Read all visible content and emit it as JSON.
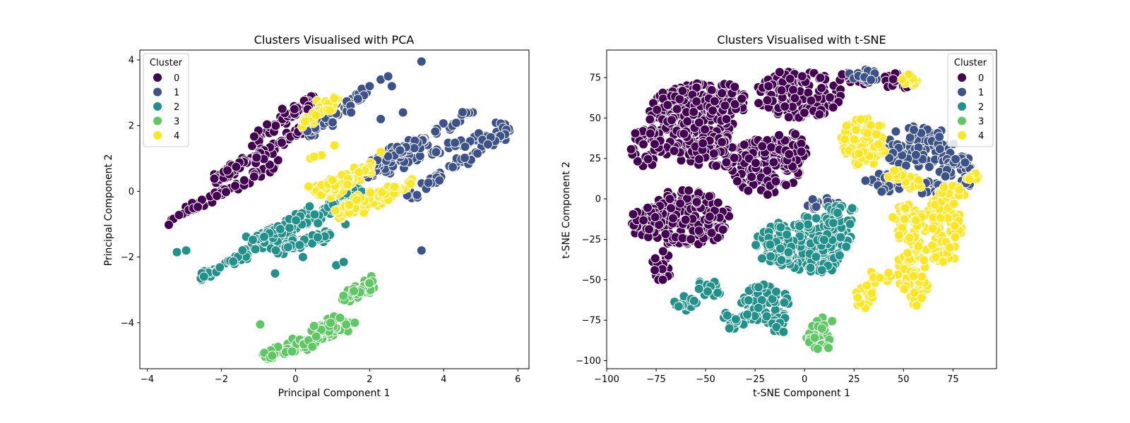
{
  "chart_data": [
    {
      "type": "scatter",
      "title": "Clusters Visualised with PCA",
      "xlabel": "Principal Component 1",
      "ylabel": "Principal Component 2",
      "xlim": [
        -4.2,
        6.3
      ],
      "ylim": [
        -5.4,
        4.3
      ],
      "xticks": [
        -4,
        -2,
        0,
        2,
        4,
        6
      ],
      "yticks": [
        -4,
        -2,
        0,
        2,
        4
      ],
      "grid": false,
      "legend": {
        "title": "Cluster",
        "placement": "top-left",
        "entries": [
          "0",
          "1",
          "2",
          "3",
          "4"
        ]
      },
      "series": [
        {
          "name": "0",
          "color": "#440154",
          "segments": [
            [
              -3.7,
              -1.05,
              -0.4,
              0.9
            ],
            [
              -0.7,
              1.3,
              1.0,
              2.5
            ],
            [
              -1.1,
              1.6,
              0.5,
              2.8
            ],
            [
              -2.2,
              0.3,
              -0.8,
              1.2
            ]
          ],
          "points": []
        },
        {
          "name": "1",
          "color": "#3b528b",
          "segments": [
            [
              0.3,
              1.8,
              1.9,
              3.0
            ],
            [
              2.0,
              0.5,
              5.8,
              2.0
            ],
            [
              3.0,
              -0.2,
              5.7,
              1.8
            ],
            [
              1.5,
              0.3,
              4.7,
              2.4
            ],
            [
              2.0,
              0.8,
              3.2,
              1.5
            ]
          ],
          "points": [
            [
              2.3,
              3.4
            ],
            [
              2.5,
              3.5
            ],
            [
              2.6,
              3.2
            ],
            [
              3.4,
              3.95
            ],
            [
              2.9,
              2.4
            ],
            [
              2.3,
              2.2
            ],
            [
              1.0,
              2.1
            ],
            [
              3.4,
              -1.8
            ],
            [
              2.0,
              3.2
            ],
            [
              1.5,
              2.4
            ]
          ]
        },
        {
          "name": "2",
          "color": "#21918c",
          "segments": [
            [
              -2.6,
              -2.65,
              0.3,
              -0.75
            ],
            [
              -2.0,
              -2.3,
              1.5,
              -0.2
            ],
            [
              -1.5,
              -1.7,
              1.7,
              0.1
            ],
            [
              -0.6,
              -1.8,
              0.9,
              -1.3
            ]
          ],
          "points": [
            [
              -3.2,
              -1.85
            ],
            [
              -2.95,
              -1.8
            ],
            [
              -0.55,
              -2.5
            ],
            [
              1.1,
              -2.25
            ],
            [
              1.3,
              -2.15
            ],
            [
              1.35,
              -1.0
            ],
            [
              0.2,
              -2.0
            ],
            [
              0.6,
              -1.4
            ],
            [
              -0.2,
              -1.7
            ]
          ]
        },
        {
          "name": "3",
          "color": "#5ec962",
          "segments": [
            [
              -0.9,
              -5.05,
              1.0,
              -4.3
            ],
            [
              -0.3,
              -4.9,
              1.5,
              -4.0
            ],
            [
              0.5,
              -4.4,
              1.0,
              -3.9
            ],
            [
              1.3,
              -3.3,
              2.1,
              -2.8
            ]
          ],
          "points": [
            [
              -0.95,
              -4.05
            ],
            [
              1.6,
              -4.0
            ],
            [
              1.2,
              -3.85
            ],
            [
              0.5,
              -4.1
            ]
          ]
        },
        {
          "name": "4",
          "color": "#fde725",
          "segments": [
            [
              0.2,
              2.1,
              1.1,
              2.8
            ],
            [
              0.9,
              -0.1,
              2.0,
              0.8
            ],
            [
              0.6,
              -0.1,
              1.7,
              0.5
            ],
            [
              1.2,
              -0.8,
              3.2,
              0.3
            ],
            [
              1.0,
              -0.6,
              2.8,
              0.1
            ],
            [
              0.5,
              0.0,
              1.5,
              0.4
            ]
          ],
          "points": [
            [
              0.4,
              1.0
            ],
            [
              0.7,
              1.1
            ],
            [
              1.05,
              1.4
            ],
            [
              0.5,
              1.05
            ],
            [
              2.3,
              1.2
            ]
          ]
        }
      ]
    },
    {
      "type": "scatter",
      "title": "Clusters Visualised with t-SNE",
      "xlabel": "t-SNE Component 1",
      "ylabel": "t-SNE Component 2",
      "xlim": [
        -100,
        97
      ],
      "ylim": [
        -105,
        92
      ],
      "xticks": [
        -100,
        -75,
        -50,
        -25,
        0,
        25,
        50,
        75
      ],
      "yticks": [
        -100,
        -75,
        -50,
        -25,
        0,
        25,
        50,
        75
      ],
      "grid": false,
      "legend": {
        "title": "Cluster",
        "placement": "top-right",
        "entries": [
          "0",
          "1",
          "2",
          "3",
          "4"
        ]
      },
      "series": [
        {
          "name": "0",
          "color": "#440154",
          "blobs": [
            [
              -58,
              48,
              22,
              25
            ],
            [
              -20,
              20,
              18,
              18
            ],
            [
              -45,
              28,
              12,
              10
            ],
            [
              -3,
              65,
              22,
              15
            ],
            [
              -10,
              30,
              12,
              12
            ],
            [
              -80,
              32,
              8,
              12
            ],
            [
              -60,
              -12,
              22,
              18
            ],
            [
              -80,
              -15,
              8,
              10
            ],
            [
              -72,
              -42,
              5,
              10
            ],
            [
              -40,
              60,
              10,
              12
            ],
            [
              25,
              75,
              10,
              5
            ],
            [
              47,
              73,
              8,
              5
            ]
          ]
        },
        {
          "name": "1",
          "color": "#3b528b",
          "blobs": [
            [
              58,
              32,
              18,
              13
            ],
            [
              78,
              15,
              10,
              12
            ],
            [
              30,
              76,
              8,
              5
            ],
            [
              42,
              10,
              12,
              6
            ],
            [
              65,
              6,
              8,
              5
            ],
            [
              8,
              -3,
              10,
              4
            ]
          ]
        },
        {
          "name": "2",
          "color": "#21918c",
          "blobs": [
            [
              5,
              -28,
              20,
              18
            ],
            [
              -15,
              -28,
              10,
              14
            ],
            [
              18,
              -10,
              8,
              8
            ],
            [
              -48,
              -55,
              6,
              7
            ],
            [
              -20,
              -65,
              12,
              12
            ],
            [
              -60,
              -65,
              6,
              5
            ],
            [
              -35,
              -75,
              8,
              6
            ],
            [
              -12,
              -78,
              5,
              5
            ]
          ]
        },
        {
          "name": "3",
          "color": "#5ec962",
          "blobs": [
            [
              8,
              -83,
              8,
              11
            ]
          ]
        },
        {
          "name": "4",
          "color": "#fde725",
          "blobs": [
            [
              30,
              35,
              12,
              15
            ],
            [
              70,
              -20,
              10,
              22
            ],
            [
              52,
              -15,
              8,
              12
            ],
            [
              55,
              -45,
              8,
              22
            ],
            [
              30,
              -58,
              5,
              10
            ],
            [
              38,
              -48,
              6,
              4
            ],
            [
              85,
              13,
              3,
              3
            ],
            [
              55,
              72,
              3,
              2
            ],
            [
              52,
              74,
              3,
              3
            ],
            [
              55,
              10,
              6,
              4
            ],
            [
              75,
              5,
              8,
              4
            ],
            [
              45,
              15,
              5,
              3
            ]
          ]
        }
      ]
    }
  ]
}
